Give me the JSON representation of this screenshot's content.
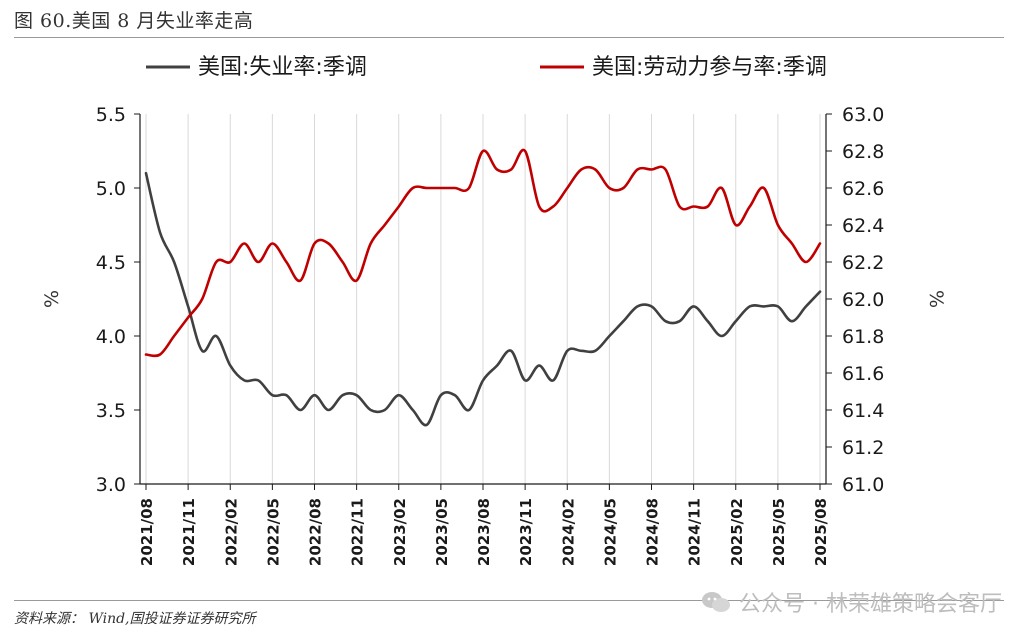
{
  "figure": {
    "title": "图 60.美国 8 月失业率走高",
    "source": "资料来源： Wind,国投证券证券研究所",
    "watermark": "公众号 · 林荣雄策略会客厅"
  },
  "chart_data": {
    "type": "line",
    "title": "",
    "x": [
      "2021/08",
      "2021/09",
      "2021/10",
      "2021/11",
      "2021/12",
      "2022/01",
      "2022/02",
      "2022/03",
      "2022/04",
      "2022/05",
      "2022/06",
      "2022/07",
      "2022/08",
      "2022/09",
      "2022/10",
      "2022/11",
      "2022/12",
      "2023/01",
      "2023/02",
      "2023/03",
      "2023/04",
      "2023/05",
      "2023/06",
      "2023/07",
      "2023/08",
      "2023/09",
      "2023/10",
      "2023/11",
      "2023/12",
      "2024/01",
      "2024/02",
      "2024/03",
      "2024/04",
      "2024/05",
      "2024/06",
      "2024/07",
      "2024/08",
      "2024/09",
      "2024/10",
      "2024/11",
      "2024/12",
      "2025/01",
      "2025/02",
      "2025/03",
      "2025/04",
      "2025/05",
      "2025/06",
      "2025/07",
      "2025/08"
    ],
    "x_tick_labels": [
      "2021/08",
      "2021/11",
      "2022/02",
      "2022/05",
      "2022/08",
      "2022/11",
      "2023/02",
      "2023/05",
      "2023/08",
      "2023/11",
      "2024/02",
      "2024/05",
      "2024/08",
      "2024/11",
      "2025/02",
      "2025/05",
      "2025/08"
    ],
    "series": [
      {
        "name": "美国:失业率:季调",
        "axis": "left",
        "color": "#404040",
        "values": [
          5.1,
          4.7,
          4.5,
          4.2,
          3.9,
          4.0,
          3.8,
          3.7,
          3.7,
          3.6,
          3.6,
          3.5,
          3.6,
          3.5,
          3.6,
          3.6,
          3.5,
          3.5,
          3.6,
          3.5,
          3.4,
          3.6,
          3.6,
          3.5,
          3.7,
          3.8,
          3.9,
          3.7,
          3.8,
          3.7,
          3.9,
          3.9,
          3.9,
          4.0,
          4.1,
          4.2,
          4.2,
          4.1,
          4.1,
          4.2,
          4.1,
          4.0,
          4.1,
          4.2,
          4.2,
          4.2,
          4.1,
          4.2,
          4.3
        ]
      },
      {
        "name": "美国:劳动力参与率:季调",
        "axis": "right",
        "color": "#c00000",
        "values": [
          61.7,
          61.7,
          61.8,
          61.9,
          62.0,
          62.2,
          62.2,
          62.3,
          62.2,
          62.3,
          62.2,
          62.1,
          62.3,
          62.3,
          62.2,
          62.1,
          62.3,
          62.4,
          62.5,
          62.6,
          62.6,
          62.6,
          62.6,
          62.6,
          62.8,
          62.7,
          62.7,
          62.8,
          62.5,
          62.5,
          62.6,
          62.7,
          62.7,
          62.6,
          62.6,
          62.7,
          62.7,
          62.7,
          62.5,
          62.5,
          62.5,
          62.6,
          62.4,
          62.5,
          62.6,
          62.4,
          62.3,
          62.2,
          62.3
        ]
      }
    ],
    "y_left": {
      "label": "%",
      "lim": [
        3.0,
        5.5
      ],
      "ticks": [
        "3.0",
        "3.5",
        "4.0",
        "4.5",
        "5.0",
        "5.5"
      ]
    },
    "y_right": {
      "label": "%",
      "lim": [
        61.0,
        63.0
      ],
      "ticks": [
        "61.0",
        "61.2",
        "61.4",
        "61.6",
        "61.8",
        "62.0",
        "62.2",
        "62.4",
        "62.6",
        "62.8",
        "63.0"
      ]
    },
    "grid": "vertical",
    "legend": "top"
  }
}
